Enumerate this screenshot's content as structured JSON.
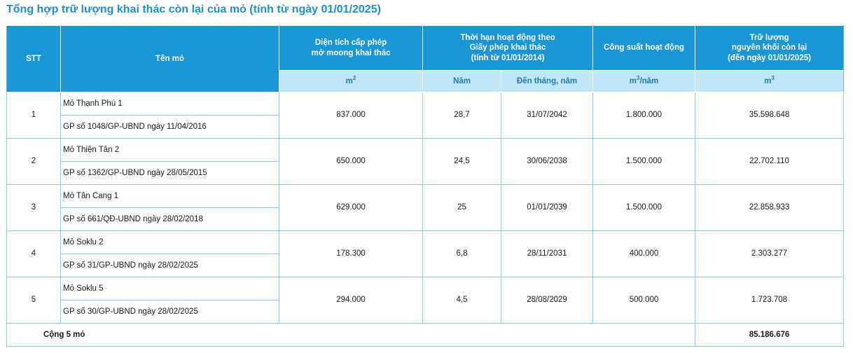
{
  "title": "Tổng hợp trữ lượng khai thác còn lại của mỏ (tính từ ngày 01/01/2025)",
  "headers": {
    "stt": "STT",
    "ten_mo": "Tên mỏ",
    "dien_tich_line1": "Diện tích cấp phép",
    "dien_tich_line2": "mở moong khai thác",
    "thoi_han_line1": "Thời hạn hoạt động theo",
    "thoi_han_line2": "Giấy phép khai thác",
    "thoi_han_line3": "(tính từ 01/01/2014)",
    "cong_suat": "Công suất hoạt động",
    "tru_luong_line1": "Trữ lượng",
    "tru_luong_line2": "nguyên khối còn lại",
    "tru_luong_line3": "(đến ngày 01/01/2025)"
  },
  "units": {
    "dien_tich": "m",
    "dien_tich_sup": "2",
    "nam": "Năm",
    "den_thang": "Đến tháng, năm",
    "cong_suat": "m",
    "cong_suat_sup": "3",
    "cong_suat_tail": "/năm",
    "tru_luong": "m",
    "tru_luong_sup": "3"
  },
  "rows": [
    {
      "stt": "1",
      "name": "Mỏ Thạnh Phú 1",
      "permit": "GP số 1048/GP-UBND ngày 11/04/2016",
      "area": "837.000",
      "years": "28,7",
      "until": "31/07/2042",
      "capacity": "1.800.000",
      "reserve": "35.598.648"
    },
    {
      "stt": "2",
      "name": "Mỏ Thiện Tân 2",
      "permit": "GP số 1362/GP-UBND ngày 28/05/2015",
      "area": "650.000",
      "years": "24,5",
      "until": "30/06/2038",
      "capacity": "1.500.000",
      "reserve": "22.702.110"
    },
    {
      "stt": "3",
      "name": "Mỏ Tân Cang 1",
      "permit": "GP số 661/QĐ-UBND ngày 28/02/2018",
      "area": "629.000",
      "years": "25",
      "until": "01/01/2039",
      "capacity": "1.500.000",
      "reserve": "22.858.933"
    },
    {
      "stt": "4",
      "name": "Mỏ Soklu 2",
      "permit": "GP số 31/GP-UBND ngày 28/02/2025",
      "area": "178.300",
      "years": "6,8",
      "until": "28/11/2031",
      "capacity": "400.000",
      "reserve": "2.303.277"
    },
    {
      "stt": "5",
      "name": "Mỏ Soklu 5",
      "permit": "GP số 30/GP-UBND ngày 28/02/2025",
      "area": "294.000",
      "years": "4,5",
      "until": "28/08/2029",
      "capacity": "500.000",
      "reserve": "1.723.708"
    }
  ],
  "total": {
    "label": "Cộng 5 mỏ",
    "value": "85.186.676"
  },
  "colors": {
    "header_bg": "#1a96d5",
    "subheader_bg": "#bfe5f7",
    "title_color": "#1f8fd0",
    "border": "#8ccbee"
  }
}
